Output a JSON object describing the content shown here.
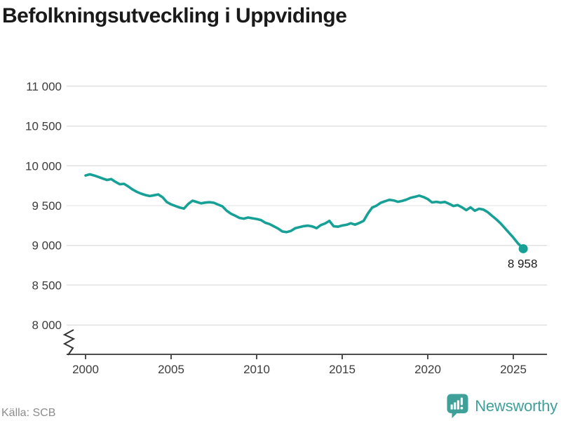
{
  "title": "Befolkningsutveckling i Uppvidinge",
  "source": "Källa: SCB",
  "brand": {
    "name": "Newsworthy",
    "color": "#3f9f99",
    "icon": "speech-bubble-bar-chart"
  },
  "colors": {
    "line": "#17a096",
    "grid": "#e2e2e2",
    "axis": "#4d4d4d",
    "tick_label": "#3c3c3c",
    "title": "#1a1a1a",
    "end_label": "#1a1a1a",
    "source": "#8c8c8c",
    "background": "#ffffff"
  },
  "chart_data": {
    "type": "line",
    "title": "Befolkningsutveckling i Uppvidinge",
    "xlabel": "",
    "ylabel": "",
    "grid": "horizontal",
    "legend": "none",
    "axis_break": true,
    "xlim": [
      1998.9,
      2026.9
    ],
    "ylim": [
      8000,
      11000
    ],
    "x_ticks": [
      {
        "value": 2000,
        "label": "2000"
      },
      {
        "value": 2005,
        "label": "2005"
      },
      {
        "value": 2010,
        "label": "2010"
      },
      {
        "value": 2015,
        "label": "2015"
      },
      {
        "value": 2020,
        "label": "2020"
      },
      {
        "value": 2025,
        "label": "2025"
      }
    ],
    "y_ticks": [
      {
        "value": 8000,
        "label": "8 000"
      },
      {
        "value": 8500,
        "label": "8 500"
      },
      {
        "value": 9000,
        "label": "9 000"
      },
      {
        "value": 9500,
        "label": "9 500"
      },
      {
        "value": 10000,
        "label": "10 000"
      },
      {
        "value": 10500,
        "label": "10 500"
      },
      {
        "value": 11000,
        "label": "11 000"
      }
    ],
    "end_point": {
      "x": 2025.58,
      "y": 8958,
      "label": "8 958"
    },
    "series": [
      {
        "name": "Befolkning",
        "color": "#17a096",
        "points": [
          [
            2000.0,
            9878
          ],
          [
            2000.25,
            9893
          ],
          [
            2000.5,
            9878
          ],
          [
            2000.75,
            9860
          ],
          [
            2001.0,
            9840
          ],
          [
            2001.25,
            9822
          ],
          [
            2001.5,
            9833
          ],
          [
            2001.75,
            9798
          ],
          [
            2002.0,
            9768
          ],
          [
            2002.25,
            9773
          ],
          [
            2002.5,
            9740
          ],
          [
            2002.75,
            9702
          ],
          [
            2003.0,
            9672
          ],
          [
            2003.25,
            9650
          ],
          [
            2003.5,
            9632
          ],
          [
            2003.75,
            9620
          ],
          [
            2004.0,
            9630
          ],
          [
            2004.25,
            9640
          ],
          [
            2004.5,
            9605
          ],
          [
            2004.75,
            9545
          ],
          [
            2005.0,
            9515
          ],
          [
            2005.25,
            9495
          ],
          [
            2005.5,
            9475
          ],
          [
            2005.75,
            9462
          ],
          [
            2006.0,
            9520
          ],
          [
            2006.25,
            9562
          ],
          [
            2006.5,
            9545
          ],
          [
            2006.75,
            9528
          ],
          [
            2007.0,
            9538
          ],
          [
            2007.25,
            9542
          ],
          [
            2007.5,
            9535
          ],
          [
            2007.75,
            9512
          ],
          [
            2008.0,
            9490
          ],
          [
            2008.25,
            9435
          ],
          [
            2008.5,
            9398
          ],
          [
            2008.75,
            9372
          ],
          [
            2009.0,
            9345
          ],
          [
            2009.25,
            9336
          ],
          [
            2009.5,
            9350
          ],
          [
            2009.75,
            9340
          ],
          [
            2010.0,
            9332
          ],
          [
            2010.25,
            9318
          ],
          [
            2010.5,
            9285
          ],
          [
            2010.75,
            9268
          ],
          [
            2011.0,
            9240
          ],
          [
            2011.25,
            9212
          ],
          [
            2011.5,
            9175
          ],
          [
            2011.75,
            9167
          ],
          [
            2012.0,
            9182
          ],
          [
            2012.25,
            9215
          ],
          [
            2012.5,
            9228
          ],
          [
            2012.75,
            9242
          ],
          [
            2013.0,
            9248
          ],
          [
            2013.25,
            9238
          ],
          [
            2013.5,
            9216
          ],
          [
            2013.75,
            9255
          ],
          [
            2014.0,
            9275
          ],
          [
            2014.25,
            9308
          ],
          [
            2014.5,
            9240
          ],
          [
            2014.75,
            9235
          ],
          [
            2015.0,
            9250
          ],
          [
            2015.25,
            9258
          ],
          [
            2015.5,
            9278
          ],
          [
            2015.75,
            9260
          ],
          [
            2016.0,
            9282
          ],
          [
            2016.25,
            9308
          ],
          [
            2016.5,
            9400
          ],
          [
            2016.75,
            9475
          ],
          [
            2017.0,
            9498
          ],
          [
            2017.25,
            9535
          ],
          [
            2017.5,
            9555
          ],
          [
            2017.75,
            9572
          ],
          [
            2018.0,
            9565
          ],
          [
            2018.25,
            9548
          ],
          [
            2018.5,
            9558
          ],
          [
            2018.75,
            9575
          ],
          [
            2019.0,
            9598
          ],
          [
            2019.25,
            9610
          ],
          [
            2019.5,
            9625
          ],
          [
            2019.75,
            9608
          ],
          [
            2020.0,
            9582
          ],
          [
            2020.25,
            9540
          ],
          [
            2020.5,
            9548
          ],
          [
            2020.75,
            9538
          ],
          [
            2021.0,
            9546
          ],
          [
            2021.25,
            9522
          ],
          [
            2021.5,
            9495
          ],
          [
            2021.75,
            9506
          ],
          [
            2022.0,
            9478
          ],
          [
            2022.25,
            9443
          ],
          [
            2022.5,
            9478
          ],
          [
            2022.75,
            9435
          ],
          [
            2023.0,
            9460
          ],
          [
            2023.25,
            9450
          ],
          [
            2023.5,
            9418
          ],
          [
            2023.75,
            9372
          ],
          [
            2024.0,
            9328
          ],
          [
            2024.25,
            9278
          ],
          [
            2024.5,
            9218
          ],
          [
            2024.75,
            9158
          ],
          [
            2025.0,
            9098
          ],
          [
            2025.25,
            9030
          ],
          [
            2025.58,
            8958
          ]
        ]
      }
    ]
  }
}
